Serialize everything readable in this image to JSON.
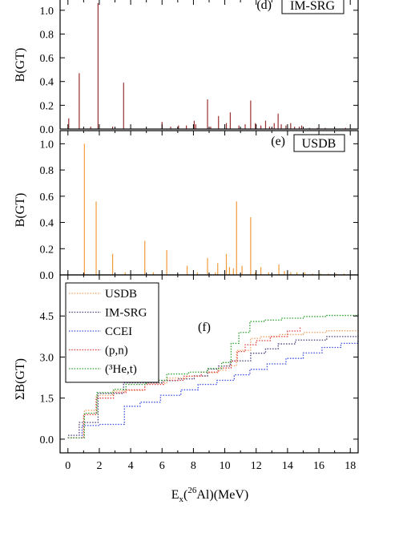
{
  "colors": {
    "usdb": "#f39a3b",
    "imsrg": "#9b2f2f",
    "usdb_cum": "#f0a060",
    "imsrg_cum": "#4b3b7a",
    "cceI": "#3a4ee0",
    "pn": "#e23b3b",
    "he3t": "#2aa02a"
  },
  "chart_data": [
    {
      "panel": "d",
      "type": "bar",
      "label": "(d)",
      "boxed_label": "IM-SRG",
      "ylabel": "B(GT)",
      "ylim": [
        0,
        1.1
      ],
      "yticks": [
        "0.0",
        "0.2",
        "0.4",
        "0.6",
        "0.8",
        "1.0"
      ],
      "xlim": [
        -0.5,
        18.5
      ],
      "x": [
        0.05,
        0.72,
        1.45,
        1.92,
        2.85,
        3.55,
        6.0,
        6.55,
        7.05,
        7.55,
        8.05,
        8.15,
        8.9,
        9.1,
        9.6,
        10.1,
        10.35,
        10.9,
        11.3,
        11.65,
        11.95,
        12.3,
        12.6,
        12.85,
        13.15,
        13.4,
        13.6,
        13.9,
        14.2,
        14.45,
        14.75,
        14.9,
        15.4,
        15.9,
        16.4,
        17.0,
        17.7
      ],
      "values": [
        0.09,
        0.47,
        0.02,
        1.06,
        0.02,
        0.39,
        0.06,
        0.02,
        0.03,
        0.03,
        0.07,
        0.04,
        0.25,
        0.02,
        0.11,
        0.05,
        0.14,
        0.03,
        0.04,
        0.24,
        0.05,
        0.03,
        0.07,
        0.02,
        0.05,
        0.13,
        0.04,
        0.03,
        0.05,
        0.02,
        0.02,
        0.03,
        0.01,
        0.01,
        0.01,
        0.01,
        0.01
      ]
    },
    {
      "panel": "e",
      "type": "bar",
      "label": "(e)",
      "boxed_label": "USDB",
      "ylabel": "B(GT)",
      "ylim": [
        0,
        1.1
      ],
      "yticks": [
        "0.0",
        "0.2",
        "0.4",
        "0.6",
        "0.8",
        "1.0"
      ],
      "xlim": [
        -0.5,
        18.5
      ],
      "x": [
        1.05,
        1.8,
        2.85,
        3.65,
        4.9,
        5.45,
        6.3,
        7.6,
        8.25,
        8.9,
        9.4,
        9.55,
        10.1,
        10.3,
        10.55,
        10.75,
        11.1,
        11.65,
        11.95,
        12.3,
        12.8,
        13.45,
        13.8,
        14.2,
        14.6,
        15.1,
        15.6,
        16.1,
        16.6,
        17.1,
        17.6
      ],
      "values": [
        1.0,
        0.56,
        0.16,
        0.02,
        0.26,
        0.02,
        0.19,
        0.07,
        0.02,
        0.13,
        0.02,
        0.09,
        0.16,
        0.06,
        0.05,
        0.56,
        0.07,
        0.44,
        0.02,
        0.06,
        0.02,
        0.08,
        0.03,
        0.02,
        0.02,
        0.02,
        0.01,
        0.01,
        0.01,
        0.01,
        0.01
      ]
    },
    {
      "panel": "f",
      "type": "line",
      "label": "(f)",
      "ylabel": "ΣB(GT)",
      "xlabel_main": "E",
      "xlabel_sub": "x",
      "xlabel_open": "(",
      "xlabel_sup": "26",
      "xlabel_rest": "Al)(MeV)",
      "ylim": [
        -0.5,
        6.0
      ],
      "xlim": [
        -0.5,
        18.5
      ],
      "yticks": [
        "0.0",
        "1.5",
        "3.0",
        "4.5"
      ],
      "ytick_values": [
        0.0,
        1.5,
        3.0,
        4.5
      ],
      "xticks": [
        "0",
        "2",
        "4",
        "6",
        "8",
        "10",
        "12",
        "14",
        "16",
        "18"
      ],
      "xtick_values": [
        0,
        2,
        4,
        6,
        8,
        10,
        12,
        14,
        16,
        18
      ],
      "series": [
        {
          "name": "USDB",
          "x": [
            0,
            1.05,
            1.8,
            2.85,
            3.65,
            4.9,
            6.3,
            7.6,
            8.9,
            9.55,
            10.1,
            10.75,
            11.65,
            12.3,
            13.45,
            15.0,
            16.5,
            18.5
          ],
          "y": [
            0.05,
            1.05,
            1.6,
            1.76,
            1.78,
            2.04,
            2.23,
            2.3,
            2.43,
            2.52,
            2.68,
            3.24,
            3.68,
            3.74,
            3.82,
            3.9,
            3.96,
            4.0
          ]
        },
        {
          "name": "IM-SRG",
          "x": [
            0,
            0.05,
            0.72,
            1.92,
            3.55,
            6.0,
            7.0,
            8.05,
            8.9,
            9.6,
            10.35,
            11.65,
            12.6,
            13.4,
            14.5,
            16.5,
            18.5
          ],
          "y": [
            0.05,
            0.14,
            0.61,
            1.67,
            2.06,
            2.14,
            2.2,
            2.31,
            2.56,
            2.67,
            2.86,
            3.14,
            3.3,
            3.48,
            3.62,
            3.75,
            3.84
          ]
        },
        {
          "name": "CCEI",
          "x": [
            0,
            0.9,
            2.0,
            3.6,
            4.6,
            5.9,
            7.2,
            8.3,
            9.5,
            10.6,
            11.6,
            12.7,
            13.9,
            15.0,
            16.2,
            17.4,
            18.5
          ],
          "y": [
            0.05,
            0.5,
            0.54,
            1.2,
            1.35,
            1.6,
            1.8,
            2.0,
            2.15,
            2.35,
            2.55,
            2.75,
            2.95,
            3.15,
            3.35,
            3.5,
            3.62
          ]
        },
        {
          "name": "(p,n)",
          "x": [
            0,
            1.0,
            1.8,
            2.9,
            3.7,
            4.9,
            6.1,
            7.4,
            8.5,
            9.6,
            10.4,
            10.8,
            11.3,
            12.0,
            12.9,
            14.0,
            14.8
          ],
          "y": [
            0.05,
            0.9,
            1.5,
            1.7,
            1.8,
            2.0,
            2.15,
            2.3,
            2.45,
            2.6,
            2.85,
            3.2,
            3.45,
            3.6,
            3.75,
            3.95,
            4.1
          ]
        },
        {
          "name": "(³He,t)",
          "x": [
            0,
            1.05,
            1.85,
            2.9,
            3.7,
            5.0,
            6.3,
            7.7,
            8.9,
            9.8,
            10.4,
            10.9,
            11.6,
            12.5,
            13.6,
            15.0,
            16.5,
            18.5
          ],
          "y": [
            0.05,
            0.95,
            1.7,
            1.82,
            2.0,
            2.15,
            2.38,
            2.45,
            2.58,
            2.8,
            3.5,
            3.9,
            4.3,
            4.35,
            4.42,
            4.48,
            4.52,
            4.58
          ]
        }
      ],
      "legend": [
        "USDB",
        "IM-SRG",
        "CCEI",
        "(p,n)",
        "(³He,t)"
      ]
    }
  ]
}
